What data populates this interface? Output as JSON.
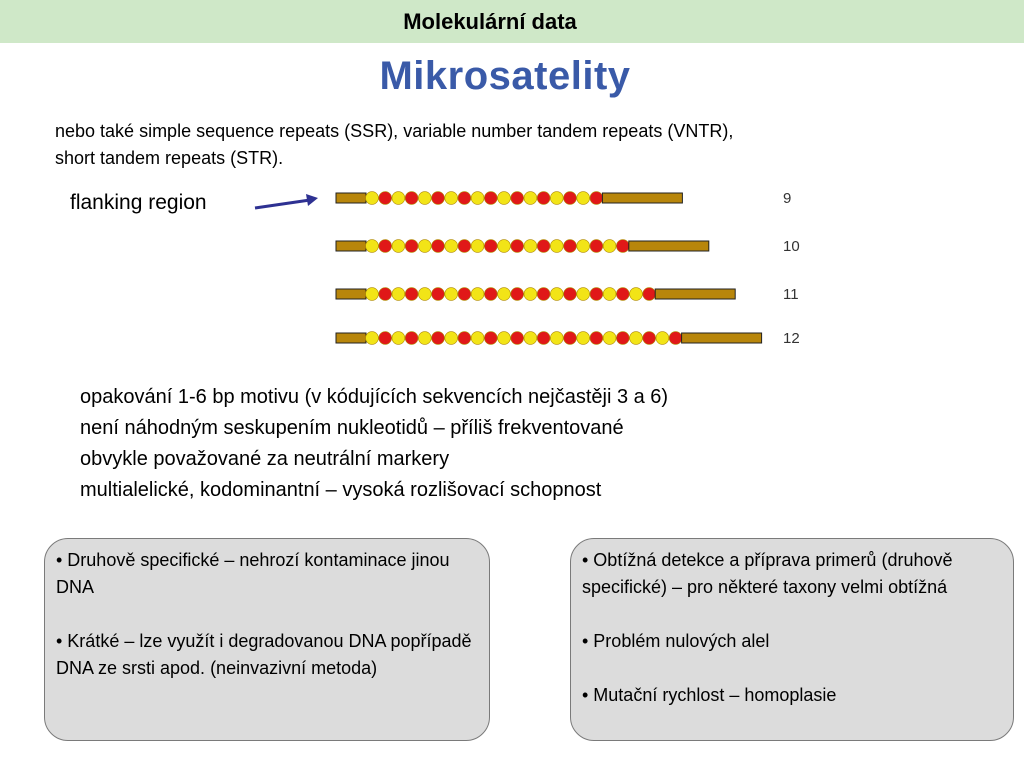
{
  "header": {
    "title": "Molekulární data"
  },
  "main": {
    "title": "Mikrosatelity"
  },
  "intro": {
    "line1": "nebo také simple sequence repeats (SSR), variable number tandem repeats (VNTR),",
    "line2": "short tandem repeats (STR)."
  },
  "diagram": {
    "flanking_label": "flanking region",
    "colors": {
      "flank": "#b8860b",
      "red": "#e01818",
      "yellow": "#f2e417",
      "arrow": "#2e3192"
    },
    "repeats": [
      {
        "count": 9,
        "label": "9"
      },
      {
        "count": 10,
        "label": "10"
      },
      {
        "count": 11,
        "label": "11"
      },
      {
        "count": 12,
        "label": "12"
      }
    ]
  },
  "properties": [
    "opakování 1-6 bp motivu (v kódujících sekvencích nejčastěji 3 a 6)",
    "není náhodným seskupením nukleotidů – příliš frekventované",
    "obvykle považované za neutrální markery",
    "multialelické, kodominantní – vysoká rozlišovací schopnost"
  ],
  "pros": [
    "•  Druhově specifické – nehrozí kontaminace jinou DNA",
    "• Krátké – lze využít i degradovanou DNA popřípadě DNA ze srsti apod. (neinvazivní metoda)"
  ],
  "cons": [
    "•  Obtížná detekce a příprava primerů (druhově specifické) – pro některé taxony velmi obtížná",
    "• Problém nulových alel",
    "• Mutační rychlost – homoplasie"
  ]
}
